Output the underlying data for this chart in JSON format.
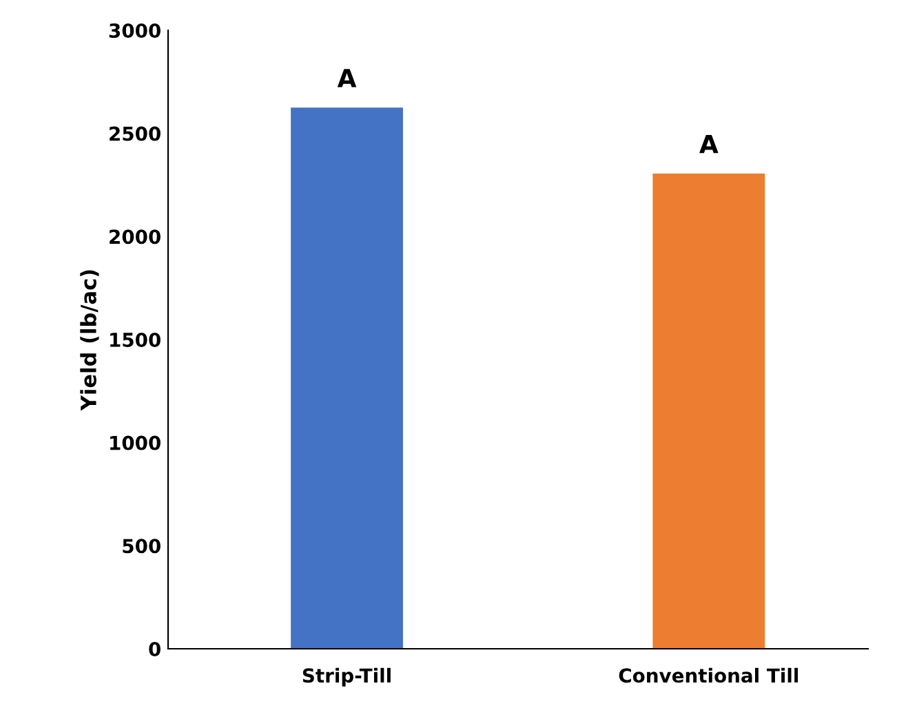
{
  "chart_data": {
    "type": "bar",
    "ylabel": "Yield (lb/ac)",
    "categories": [
      "Strip-Till",
      "Conventional Till"
    ],
    "values": [
      2625,
      2305
    ],
    "colors": [
      "#4472c4",
      "#ed7d31"
    ],
    "ylim": [
      0,
      3000
    ],
    "yticks": [
      0,
      500,
      1000,
      1500,
      2000,
      2500,
      3000
    ],
    "grid": false,
    "legend": false,
    "annotations": [
      {
        "text": "A",
        "x": "Strip-Till",
        "y": 2625
      },
      {
        "text": "A",
        "x": "Conventional Till",
        "y": 2305
      }
    ]
  }
}
